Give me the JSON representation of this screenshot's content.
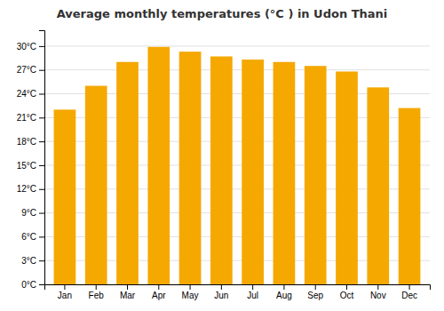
{
  "chart_data": {
    "type": "bar",
    "title": "Average monthly temperatures (°C ) in Udon Thani",
    "categories": [
      "Jan",
      "Feb",
      "Mar",
      "Apr",
      "May",
      "Jun",
      "Jul",
      "Aug",
      "Sep",
      "Oct",
      "Nov",
      "Dec"
    ],
    "values": [
      22.0,
      25.0,
      28.0,
      29.9,
      29.3,
      28.7,
      28.3,
      28.0,
      27.5,
      26.8,
      24.8,
      22.2
    ],
    "color": "#F5A800",
    "ylim": [
      0,
      32
    ],
    "yticks": [
      {
        "value": 0,
        "label": "0°C"
      },
      {
        "value": 3,
        "label": "3°C"
      },
      {
        "value": 6,
        "label": "6°C"
      },
      {
        "value": 9,
        "label": "9°C"
      },
      {
        "value": 12,
        "label": "12°C"
      },
      {
        "value": 15,
        "label": "15°C"
      },
      {
        "value": 18,
        "label": "18°C"
      },
      {
        "value": 21,
        "label": "21°C"
      },
      {
        "value": 24,
        "label": "24°C"
      },
      {
        "value": 27,
        "label": "27°C"
      },
      {
        "value": 30,
        "label": "30°C"
      }
    ],
    "grid": true
  }
}
